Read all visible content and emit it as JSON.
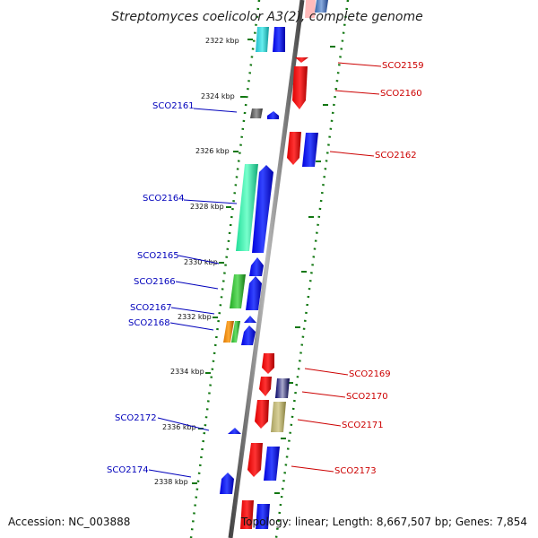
{
  "title": "Streptomyces coelicolor A3(2), complete genome",
  "footer": {
    "accession": "Accession: NC_003888",
    "info": "Topology: linear; Length: 8,667,507 bp; Genes: 7,854"
  },
  "colors": {
    "left_label": "#0000bb",
    "right_label": "#cc0000",
    "tick": "#117711"
  },
  "ruler": [
    {
      "label": "2322 kbp"
    },
    {
      "label": "2324 kbp"
    },
    {
      "label": "2326 kbp"
    },
    {
      "label": "2328 kbp"
    },
    {
      "label": "2330 kbp"
    },
    {
      "label": "2332 kbp"
    },
    {
      "label": "2334 kbp"
    },
    {
      "label": "2336 kbp"
    },
    {
      "label": "2338 kbp"
    }
  ],
  "genes_left": [
    {
      "label": "SCO2161"
    },
    {
      "label": "SCO2164"
    },
    {
      "label": "SCO2165"
    },
    {
      "label": "SCO2166"
    },
    {
      "label": "SCO2167"
    },
    {
      "label": "SCO2168"
    },
    {
      "label": "SCO2172"
    },
    {
      "label": "SCO2174"
    }
  ],
  "genes_right": [
    {
      "label": "SCO2159"
    },
    {
      "label": "SCO2160"
    },
    {
      "label": "SCO2162"
    },
    {
      "label": "SCO2169"
    },
    {
      "label": "SCO2170"
    },
    {
      "label": "SCO2171"
    },
    {
      "label": "SCO2173"
    }
  ]
}
